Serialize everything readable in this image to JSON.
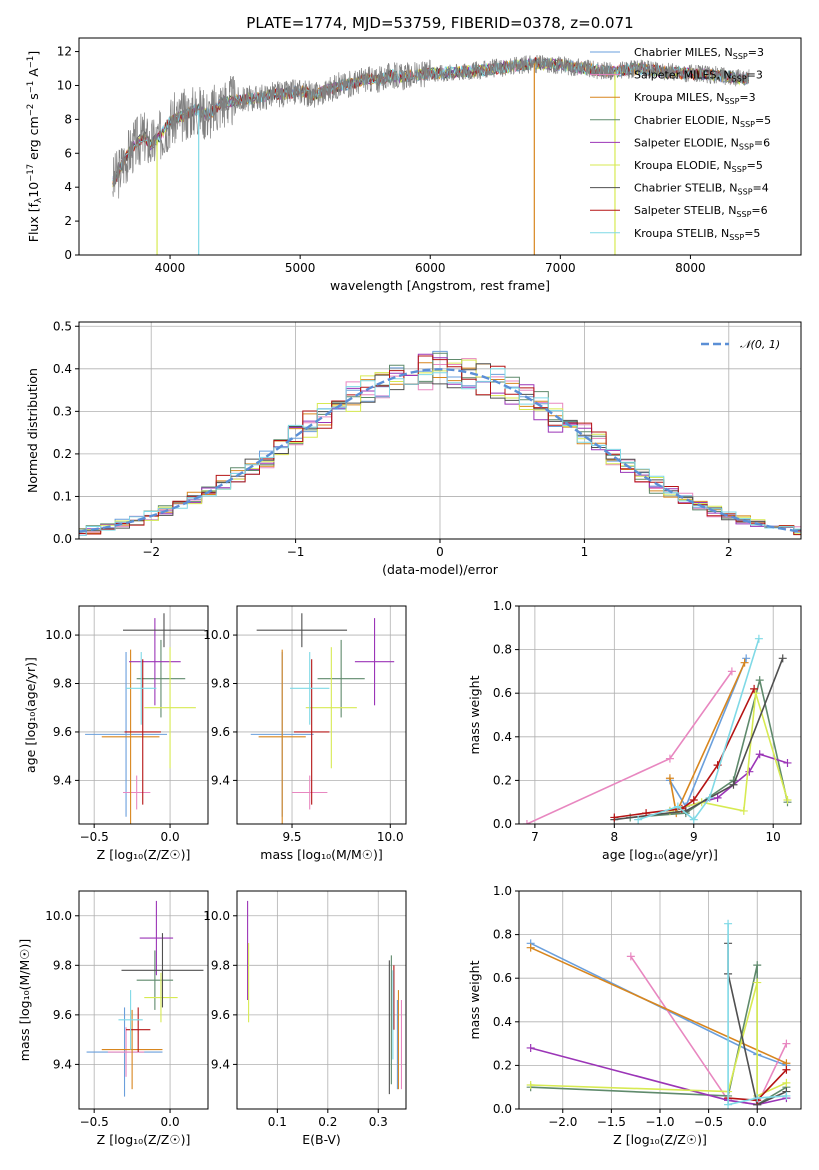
{
  "figure_title": "PLATE=1774, MJD=53759, FIBERID=0378, z=0.071",
  "colors": [
    "#6a9fdc",
    "#e887c0",
    "#d8861e",
    "#5f8a6c",
    "#9b35b7",
    "#d7ea52",
    "#505050",
    "#b51414",
    "#7fd9e6"
  ],
  "chart_data": [
    {
      "id": "spectrum",
      "type": "line",
      "title": "PLATE=1774, MJD=53759, FIBERID=0378, z=0.071",
      "xlabel": "wavelength [Angstrom, rest frame]",
      "ylabel_parts": [
        "Flux [f",
        "λ",
        "10",
        "−17",
        " erg cm",
        "−2",
        " s",
        "−1",
        " A",
        "−1",
        "]"
      ],
      "xlim": [
        3300,
        8850
      ],
      "ylim": [
        0,
        12.8
      ],
      "xticks": [
        4000,
        5000,
        6000,
        7000,
        8000
      ],
      "yticks": [
        0,
        2,
        4,
        6,
        8,
        10,
        12
      ],
      "legend_position": "upper-right",
      "data_color": "#808080",
      "data_points": [
        [
          3560,
          4.3
        ],
        [
          3600,
          4.8
        ],
        [
          3650,
          5.6
        ],
        [
          3700,
          6.2
        ],
        [
          3750,
          6.7
        ],
        [
          3800,
          7.0
        ],
        [
          3850,
          6.5
        ],
        [
          3900,
          6.8
        ],
        [
          3950,
          7.3
        ],
        [
          4000,
          7.9
        ],
        [
          4100,
          8.2
        ],
        [
          4200,
          8.6
        ],
        [
          4300,
          8.3
        ],
        [
          4400,
          9.0
        ],
        [
          4500,
          9.1
        ],
        [
          4600,
          9.2
        ],
        [
          4700,
          9.3
        ],
        [
          4800,
          9.5
        ],
        [
          4900,
          9.5
        ],
        [
          5000,
          9.7
        ],
        [
          5100,
          9.4
        ],
        [
          5200,
          9.7
        ],
        [
          5300,
          10.0
        ],
        [
          5400,
          10.1
        ],
        [
          5500,
          10.4
        ],
        [
          5600,
          10.3
        ],
        [
          5700,
          10.6
        ],
        [
          5800,
          10.5
        ],
        [
          5900,
          10.6
        ],
        [
          6000,
          10.7
        ],
        [
          6200,
          10.8
        ],
        [
          6400,
          10.9
        ],
        [
          6600,
          11.1
        ],
        [
          6800,
          11.3
        ],
        [
          7000,
          11.2
        ],
        [
          7200,
          11.0
        ],
        [
          7400,
          10.8
        ],
        [
          7600,
          11.0
        ],
        [
          7800,
          10.8
        ],
        [
          8000,
          10.7
        ],
        [
          8200,
          10.6
        ],
        [
          8400,
          10.4
        ]
      ],
      "spikes": [
        3900,
        4220,
        6800,
        7420
      ],
      "series": [
        {
          "name_parts": [
            "Chabrier MILES, N",
            "SSP",
            "=3"
          ]
        },
        {
          "name_parts": [
            "Salpeter MILES, N",
            "SSP",
            "=3"
          ]
        },
        {
          "name_parts": [
            "Kroupa MILES, N",
            "SSP",
            "=3"
          ]
        },
        {
          "name_parts": [
            "Chabrier ELODIE, N",
            "SSP",
            "=5"
          ]
        },
        {
          "name_parts": [
            "Salpeter ELODIE, N",
            "SSP",
            "=6"
          ]
        },
        {
          "name_parts": [
            "Kroupa ELODIE, N",
            "SSP",
            "=5"
          ]
        },
        {
          "name_parts": [
            "Chabrier STELIB, N",
            "SSP",
            "=4"
          ]
        },
        {
          "name_parts": [
            "Salpeter STELIB, N",
            "SSP",
            "=6"
          ]
        },
        {
          "name_parts": [
            "Kroupa STELIB, N",
            "SSP",
            "=5"
          ]
        }
      ]
    },
    {
      "id": "residuals",
      "type": "histogram",
      "xlabel": "(data-model)/error",
      "ylabel": "Normed distribution",
      "xlim": [
        -2.5,
        2.5
      ],
      "ylim": [
        0,
        0.51
      ],
      "xticks": [
        -2,
        -1,
        0,
        1,
        2
      ],
      "yticks": [
        0.0,
        0.1,
        0.2,
        0.3,
        0.4,
        0.5
      ],
      "ytick_labels": [
        "0.0",
        "0.1",
        "0.2",
        "0.3",
        "0.4",
        "0.5"
      ],
      "xtick_labels": [
        "−2",
        "−1",
        "0",
        "1",
        "2"
      ],
      "bin_width": 0.1,
      "legend_label": "𝒩(0, 1)",
      "legend_position": "upper-right",
      "gaussian": {
        "mean": 0,
        "sigma": 1,
        "color": "#5b8fd6"
      }
    },
    {
      "id": "age-vs-Z",
      "type": "errorbar",
      "xlabel": "Z [log₁₀(Z/Z☉)]",
      "ylabel": "age  [log₁₀(age/yr)]",
      "xlim": [
        -0.6,
        0.25
      ],
      "ylim": [
        9.22,
        10.12
      ],
      "xticks": [
        -0.5,
        0.0
      ],
      "xtick_labels": [
        "−0.5",
        "0.0"
      ],
      "yticks": [
        9.4,
        9.6,
        9.8,
        10.0
      ],
      "ytick_labels": [
        "9.4",
        "9.6",
        "9.8",
        "10.0"
      ],
      "points": [
        {
          "x": -0.29,
          "y": 9.59,
          "xerr": 0.27,
          "yerr": 0.34
        },
        {
          "x": -0.22,
          "y": 9.35,
          "xerr": 0.09,
          "yerr": 0.07
        },
        {
          "x": -0.26,
          "y": 9.58,
          "xerr": 0.19,
          "yerr": 0.36
        },
        {
          "x": -0.06,
          "y": 9.82,
          "xerr": 0.16,
          "yerr": 0.16
        },
        {
          "x": -0.1,
          "y": 9.89,
          "xerr": 0.17,
          "yerr": 0.18
        },
        {
          "x": 0.0,
          "y": 9.7,
          "xerr": 0.17,
          "yerr": 0.25
        },
        {
          "x": -0.04,
          "y": 10.02,
          "xerr": 0.27,
          "yerr": 0.07
        },
        {
          "x": -0.18,
          "y": 9.6,
          "xerr": 0.12,
          "yerr": 0.3
        },
        {
          "x": -0.19,
          "y": 9.78,
          "xerr": 0.1,
          "yerr": 0.15
        }
      ]
    },
    {
      "id": "age-vs-mass",
      "type": "errorbar",
      "xlabel": "mass [log₁₀(M/M☉)]",
      "ylabel": "",
      "xlim": [
        9.22,
        10.08
      ],
      "ylim": [
        9.22,
        10.12
      ],
      "xticks": [
        9.5,
        10.0
      ],
      "xtick_labels": [
        "9.5",
        "10.0"
      ],
      "yticks": [
        9.4,
        9.6,
        9.8,
        10.0
      ],
      "ytick_labels": [
        "9.4",
        "9.6",
        "9.8",
        "10.0"
      ],
      "points": [
        {
          "x": 9.45,
          "y": 9.59,
          "xerr": 0.16,
          "yerr": 0.34
        },
        {
          "x": 9.59,
          "y": 9.35,
          "xerr": 0.09,
          "yerr": 0.07
        },
        {
          "x": 9.45,
          "y": 9.58,
          "xerr": 0.12,
          "yerr": 0.36
        },
        {
          "x": 9.75,
          "y": 9.82,
          "xerr": 0.12,
          "yerr": 0.16
        },
        {
          "x": 9.92,
          "y": 9.89,
          "xerr": 0.1,
          "yerr": 0.18
        },
        {
          "x": 9.7,
          "y": 9.7,
          "xerr": 0.13,
          "yerr": 0.25
        },
        {
          "x": 9.55,
          "y": 10.02,
          "xerr": 0.23,
          "yerr": 0.07
        },
        {
          "x": 9.6,
          "y": 9.6,
          "xerr": 0.09,
          "yerr": 0.3
        },
        {
          "x": 9.59,
          "y": 9.78,
          "xerr": 0.1,
          "yerr": 0.15
        }
      ]
    },
    {
      "id": "weight-vs-age",
      "type": "line",
      "xlabel": "age  [log₁₀(age/yr)]",
      "ylabel": "mass weight",
      "xlim": [
        6.8,
        10.35
      ],
      "ylim": [
        0,
        1.0
      ],
      "xticks": [
        7,
        8,
        9,
        10
      ],
      "xtick_labels": [
        "7",
        "8",
        "9",
        "10"
      ],
      "yticks": [
        0.0,
        0.2,
        0.4,
        0.6,
        0.8,
        1.0
      ],
      "ytick_labels": [
        "0.0",
        "0.2",
        "0.4",
        "0.6",
        "0.8",
        "1.0"
      ],
      "series": [
        {
          "points": [
            [
              8.7,
              0.2
            ],
            [
              8.9,
              0.08
            ],
            [
              9.66,
              0.76
            ]
          ]
        },
        {
          "points": [
            [
              6.9,
              0.0
            ],
            [
              8.7,
              0.3
            ],
            [
              9.48,
              0.7
            ]
          ]
        },
        {
          "points": [
            [
              8.7,
              0.21
            ],
            [
              8.78,
              0.05
            ],
            [
              9.64,
              0.74
            ]
          ]
        },
        {
          "points": [
            [
              8.2,
              0.03
            ],
            [
              8.9,
              0.05
            ],
            [
              9.5,
              0.2
            ],
            [
              9.83,
              0.66
            ],
            [
              10.18,
              0.1
            ]
          ]
        },
        {
          "points": [
            [
              8.7,
              0.06
            ],
            [
              9.3,
              0.12
            ],
            [
              9.7,
              0.24
            ],
            [
              9.83,
              0.32
            ],
            [
              10.18,
              0.28
            ]
          ]
        },
        {
          "points": [
            [
              8.7,
              0.06
            ],
            [
              9.1,
              0.1
            ],
            [
              9.63,
              0.06
            ],
            [
              9.78,
              0.6
            ],
            [
              10.18,
              0.11
            ]
          ]
        },
        {
          "points": [
            [
              8.0,
              0.02
            ],
            [
              8.9,
              0.06
            ],
            [
              9.5,
              0.18
            ],
            [
              10.12,
              0.76
            ]
          ]
        },
        {
          "points": [
            [
              8.0,
              0.03
            ],
            [
              8.4,
              0.05
            ],
            [
              8.85,
              0.07
            ],
            [
              9.0,
              0.11
            ],
            [
              9.3,
              0.27
            ],
            [
              9.76,
              0.62
            ]
          ]
        },
        {
          "points": [
            [
              8.3,
              0.02
            ],
            [
              8.8,
              0.08
            ],
            [
              9.0,
              0.02
            ],
            [
              9.2,
              0.12
            ],
            [
              9.82,
              0.85
            ]
          ]
        }
      ]
    },
    {
      "id": "mass-vs-Z",
      "type": "errorbar",
      "xlabel": "Z [log₁₀(Z/Z☉)]",
      "ylabel": "mass [log₁₀(M/M☉)]",
      "xlim": [
        -0.6,
        0.25
      ],
      "ylim": [
        9.22,
        10.1
      ],
      "xticks": [
        -0.5,
        0.0
      ],
      "xtick_labels": [
        "−0.5",
        "0.0"
      ],
      "yticks": [
        9.4,
        9.6,
        9.8,
        10.0
      ],
      "ytick_labels": [
        "9.4",
        "9.6",
        "9.8",
        "10.0"
      ],
      "points": [
        {
          "x": -0.3,
          "y": 9.45,
          "xerr": 0.25,
          "yerr": 0.18
        },
        {
          "x": -0.29,
          "y": 9.45,
          "xerr": 0.12,
          "yerr": 0.1
        },
        {
          "x": -0.25,
          "y": 9.46,
          "xerr": 0.2,
          "yerr": 0.16
        },
        {
          "x": -0.1,
          "y": 9.74,
          "xerr": 0.12,
          "yerr": 0.12
        },
        {
          "x": -0.09,
          "y": 9.91,
          "xerr": 0.11,
          "yerr": 0.15
        },
        {
          "x": -0.06,
          "y": 9.67,
          "xerr": 0.11,
          "yerr": 0.1
        },
        {
          "x": -0.05,
          "y": 9.78,
          "xerr": 0.27,
          "yerr": 0.15
        },
        {
          "x": -0.21,
          "y": 9.54,
          "xerr": 0.08,
          "yerr": 0.09
        },
        {
          "x": -0.26,
          "y": 9.58,
          "xerr": 0.08,
          "yerr": 0.12
        }
      ]
    },
    {
      "id": "mass-vs-ebv",
      "type": "errorbar",
      "xlabel": "E(B-V)",
      "ylabel": "",
      "xlim": [
        0.02,
        0.355
      ],
      "ylim": [
        9.22,
        10.1
      ],
      "xticks": [
        0.1,
        0.2,
        0.3
      ],
      "xtick_labels": [
        "0.1",
        "0.2",
        "0.3"
      ],
      "yticks": [
        9.4,
        9.6,
        9.8,
        10.0
      ],
      "ytick_labels": [
        "9.4",
        "9.6",
        "9.8",
        "10.0"
      ],
      "points": [
        {
          "x": 0.338,
          "y": 9.48,
          "xerr": 0,
          "yerr": 0.18
        },
        {
          "x": 0.346,
          "y": 9.48,
          "xerr": 0,
          "yerr": 0.18
        },
        {
          "x": 0.34,
          "y": 9.5,
          "xerr": 0,
          "yerr": 0.2
        },
        {
          "x": 0.326,
          "y": 9.58,
          "xerr": 0,
          "yerr": 0.26
        },
        {
          "x": 0.041,
          "y": 9.86,
          "xerr": 0,
          "yerr": 0.2
        },
        {
          "x": 0.043,
          "y": 9.73,
          "xerr": 0,
          "yerr": 0.16
        },
        {
          "x": 0.322,
          "y": 9.55,
          "xerr": 0,
          "yerr": 0.27
        },
        {
          "x": 0.331,
          "y": 9.67,
          "xerr": 0,
          "yerr": 0.13
        },
        {
          "x": 0.329,
          "y": 9.6,
          "xerr": 0,
          "yerr": 0.18
        }
      ]
    },
    {
      "id": "weight-vs-Z",
      "type": "line",
      "xlabel": "Z [log₁₀(Z/Z☉)]",
      "ylabel": "mass weight",
      "xlim": [
        -2.45,
        0.45
      ],
      "ylim": [
        0,
        1.0
      ],
      "xticks": [
        -2.0,
        -1.5,
        -1.0,
        -0.5,
        0.0
      ],
      "xtick_labels": [
        "−2.0",
        "−1.5",
        "−1.0",
        "−0.5",
        "0.0"
      ],
      "yticks": [
        0.0,
        0.2,
        0.4,
        0.6,
        0.8,
        1.0
      ],
      "ytick_labels": [
        "0.0",
        "0.2",
        "0.4",
        "0.6",
        "0.8",
        "1.0"
      ],
      "series": [
        {
          "points": [
            [
              -2.33,
              0.76
            ],
            [
              0.0,
              0.25
            ],
            [
              0.3,
              0.2
            ]
          ]
        },
        {
          "points": [
            [
              -1.3,
              0.7
            ],
            [
              -0.3,
              0.04
            ],
            [
              0.0,
              0.02
            ],
            [
              0.3,
              0.3
            ]
          ]
        },
        {
          "points": [
            [
              -2.33,
              0.74
            ],
            [
              0.3,
              0.21
            ]
          ]
        },
        {
          "points": [
            [
              -2.33,
              0.1
            ],
            [
              -0.3,
              0.06
            ],
            [
              0.0,
              0.66
            ],
            [
              0.0,
              0.02
            ],
            [
              0.3,
              0.1
            ]
          ]
        },
        {
          "points": [
            [
              -2.33,
              0.28
            ],
            [
              -0.3,
              0.04
            ],
            [
              0.0,
              0.02
            ],
            [
              0.3,
              0.05
            ]
          ]
        },
        {
          "points": [
            [
              -2.33,
              0.11
            ],
            [
              -0.3,
              0.08
            ],
            [
              0.0,
              0.58
            ],
            [
              0.0,
              0.06
            ],
            [
              0.3,
              0.12
            ]
          ]
        },
        {
          "points": [
            [
              -0.3,
              0.76
            ],
            [
              -0.3,
              0.62
            ],
            [
              0.0,
              0.02
            ],
            [
              0.3,
              0.08
            ]
          ]
        },
        {
          "points": [
            [
              -0.3,
              0.05
            ],
            [
              0.0,
              0.04
            ],
            [
              0.3,
              0.18
            ]
          ]
        },
        {
          "points": [
            [
              -0.3,
              0.85
            ],
            [
              -0.3,
              0.02
            ],
            [
              0.0,
              0.05
            ],
            [
              0.3,
              0.06
            ]
          ]
        }
      ]
    }
  ]
}
